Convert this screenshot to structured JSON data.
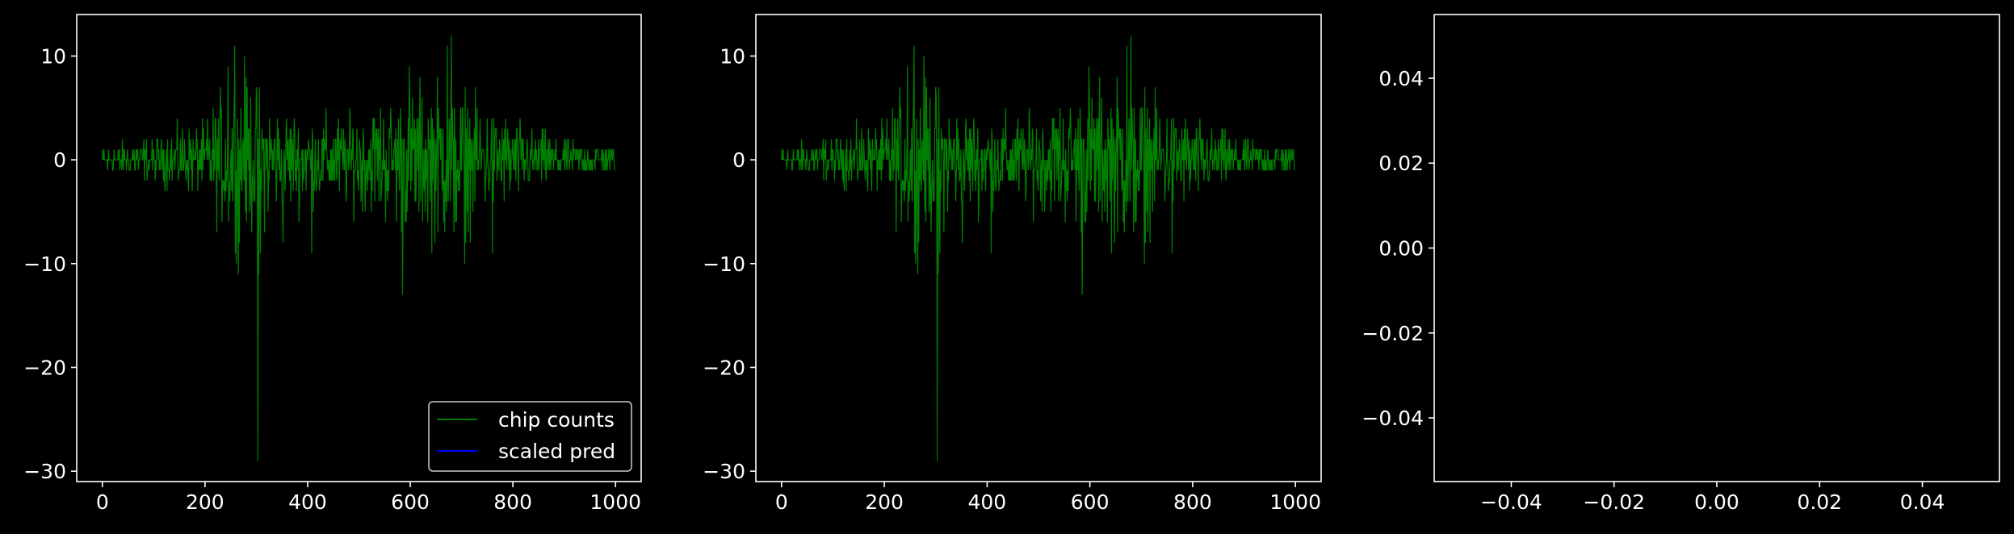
{
  "figure": {
    "background": "#000000",
    "foreground": "#ffffff"
  },
  "chart_data": [
    {
      "type": "line",
      "xlim": [
        -50,
        1050
      ],
      "ylim": [
        -31,
        14
      ],
      "x_ticks": [
        0,
        200,
        400,
        600,
        800,
        1000
      ],
      "x_tick_labels": [
        "0",
        "200",
        "400",
        "600",
        "800",
        "1000"
      ],
      "y_ticks": [
        -30,
        -20,
        -10,
        0,
        10
      ],
      "y_tick_labels": [
        "−30",
        "−20",
        "−10",
        "0",
        "10"
      ],
      "grid": false,
      "legend": {
        "placement": "lower-right",
        "entries": [
          {
            "label": "chip counts",
            "color": "#008000"
          },
          {
            "label": "scaled pred",
            "color": "#0000ff"
          }
        ]
      },
      "series": [
        {
          "name": "chip counts",
          "color": "#008000",
          "n_points": 1000,
          "noise_envelope": [
            [
              0,
              1.5
            ],
            [
              100,
              2
            ],
            [
              200,
              4
            ],
            [
              250,
              8
            ],
            [
              300,
              7
            ],
            [
              350,
              5
            ],
            [
              450,
              4
            ],
            [
              550,
              6
            ],
            [
              650,
              8
            ],
            [
              700,
              7
            ],
            [
              800,
              4
            ],
            [
              900,
              2
            ],
            [
              999,
              1.5
            ]
          ],
          "spikes": [
            [
              245,
              9
            ],
            [
              258,
              11
            ],
            [
              265,
              -11
            ],
            [
              277,
              10
            ],
            [
              303,
              -29
            ],
            [
              305,
              -11
            ],
            [
              308,
              -9
            ],
            [
              352,
              -8
            ],
            [
              408,
              -9
            ],
            [
              585,
              -13
            ],
            [
              598,
              9
            ],
            [
              672,
              11
            ],
            [
              680,
              12
            ],
            [
              685,
              -7
            ],
            [
              706,
              -10
            ],
            [
              760,
              -9
            ]
          ]
        },
        {
          "name": "scaled pred",
          "color": "#0000ff",
          "points": []
        }
      ]
    },
    {
      "type": "line",
      "xlim": [
        -50,
        1050
      ],
      "ylim": [
        -31,
        14
      ],
      "x_ticks": [
        0,
        200,
        400,
        600,
        800,
        1000
      ],
      "x_tick_labels": [
        "0",
        "200",
        "400",
        "600",
        "800",
        "1000"
      ],
      "y_ticks": [
        -30,
        -20,
        -10,
        0,
        10
      ],
      "y_tick_labels": [
        "−30",
        "−20",
        "−10",
        "0",
        "10"
      ],
      "grid": false,
      "series": [
        {
          "color": "#008000",
          "n_points": 1000,
          "noise_envelope": [
            [
              0,
              1.5
            ],
            [
              100,
              2
            ],
            [
              200,
              4
            ],
            [
              250,
              8
            ],
            [
              300,
              7
            ],
            [
              350,
              5
            ],
            [
              450,
              4
            ],
            [
              550,
              6
            ],
            [
              650,
              8
            ],
            [
              700,
              7
            ],
            [
              800,
              4
            ],
            [
              900,
              2
            ],
            [
              999,
              1.5
            ]
          ],
          "spikes": [
            [
              245,
              9
            ],
            [
              258,
              11
            ],
            [
              265,
              -11
            ],
            [
              277,
              10
            ],
            [
              303,
              -29
            ],
            [
              305,
              -11
            ],
            [
              308,
              -9
            ],
            [
              352,
              -8
            ],
            [
              408,
              -9
            ],
            [
              585,
              -13
            ],
            [
              598,
              9
            ],
            [
              672,
              11
            ],
            [
              680,
              12
            ],
            [
              685,
              -7
            ],
            [
              706,
              -10
            ],
            [
              760,
              -9
            ]
          ]
        }
      ]
    },
    {
      "type": "line",
      "xlim": [
        -0.055,
        0.055
      ],
      "ylim": [
        -0.055,
        0.055
      ],
      "x_ticks": [
        -0.04,
        -0.02,
        0.0,
        0.02,
        0.04
      ],
      "x_tick_labels": [
        "−0.04",
        "−0.02",
        "0.00",
        "0.02",
        "0.04"
      ],
      "y_ticks": [
        -0.04,
        -0.02,
        0.0,
        0.02,
        0.04
      ],
      "y_tick_labels": [
        "−0.04",
        "−0.02",
        "0.00",
        "0.02",
        "0.04"
      ],
      "grid": false,
      "series": []
    }
  ]
}
